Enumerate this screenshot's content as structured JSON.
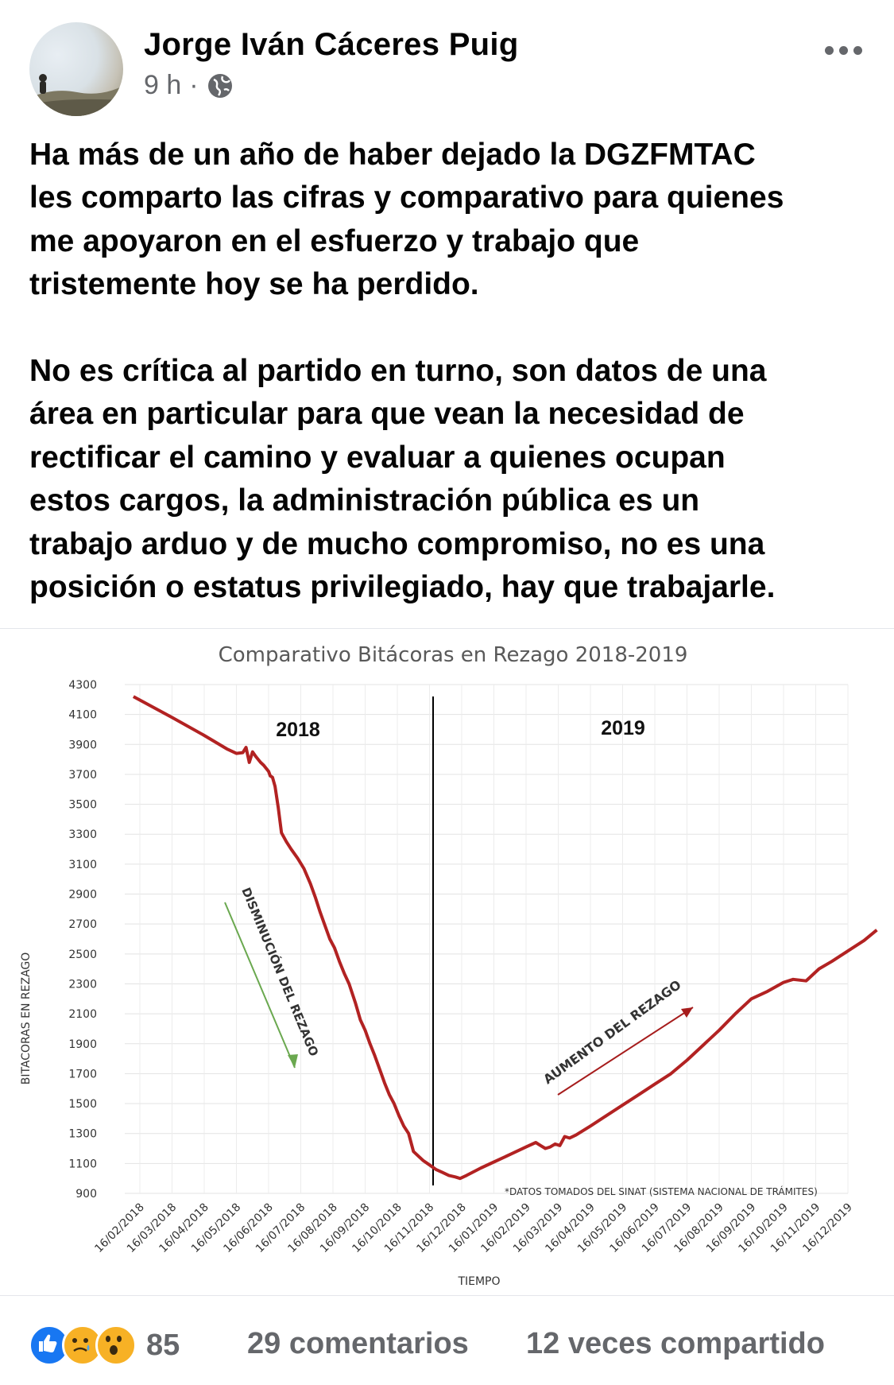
{
  "post": {
    "author": "Jorge Iván Cáceres Puig",
    "time": "9 h",
    "separator": "·",
    "privacy_icon": "globe-icon",
    "more_icon": "more-icon",
    "text": "Ha más de un año de haber dejado la DGZFMTAC\nles comparto las cifras y comparativo para quienes\nme apoyaron en el esfuerzo y trabajo que\ntristemente hoy se ha perdido.\n\nNo es crítica al partido en turno, son datos de una\nárea en particular para que vean la necesidad de\nrectificar el camino y evaluar a quienes ocupan\nestos cargos, la administración pública es un\ntrabajo arduo y de mucho compromiso, no es una\nposición o estatus privilegiado, hay que trabajarle."
  },
  "footer": {
    "reaction_icons": [
      "like-icon",
      "sad-icon",
      "wow-icon"
    ],
    "reaction_count": "85",
    "comments": "29 comentarios",
    "shares": "12 veces compartido"
  },
  "colors": {
    "line": "#b22222",
    "down_arrow": "#6aa84f",
    "up_arrow": "#a61c1c",
    "meta_gray": "#65676b",
    "like_blue": "#1877f2"
  },
  "chart_data": {
    "type": "line",
    "title": "Comparativo Bitácoras en Rezago 2018-2019",
    "xlabel": "TIEMPO",
    "ylabel": "BITACORAS EN REZAGO",
    "ylim": [
      900,
      4300
    ],
    "yticks": [
      4300,
      4100,
      3900,
      3700,
      3500,
      3300,
      3100,
      2900,
      2700,
      2500,
      2300,
      2100,
      1900,
      1700,
      1500,
      1300,
      1100,
      900
    ],
    "xticks": [
      "16/02/2018",
      "16/03/2018",
      "16/04/2018",
      "16/05/2018",
      "16/06/2018",
      "16/07/2018",
      "16/08/2018",
      "16/09/2018",
      "16/10/2018",
      "16/11/2018",
      "16/12/2018",
      "16/01/2019",
      "16/02/2019",
      "16/03/2019",
      "16/04/2019",
      "16/05/2019",
      "16/06/2019",
      "16/07/2019",
      "16/08/2019",
      "16/09/2019",
      "16/10/2019",
      "16/11/2019",
      "16/12/2019"
    ],
    "grid": true,
    "year_labels": [
      "2018",
      "2019"
    ],
    "annotations": {
      "decrease": "DISMINUCIÓN DEL REZAGO",
      "increase": "AUMENTO DEL REZAGO",
      "source": "*DATOS TOMADOS DEL SINAT (SISTEMA NACIONAL DE TRÁMITES)"
    },
    "series": [
      {
        "points": [
          [
            -0.2,
            4220
          ],
          [
            1.0,
            4080
          ],
          [
            2.0,
            3960
          ],
          [
            2.7,
            3870
          ],
          [
            3.0,
            3840
          ],
          [
            3.2,
            3845
          ],
          [
            3.3,
            3880
          ],
          [
            3.4,
            3780
          ],
          [
            3.5,
            3850
          ],
          [
            3.6,
            3820
          ],
          [
            3.75,
            3780
          ],
          [
            3.85,
            3760
          ],
          [
            4.0,
            3720
          ],
          [
            4.05,
            3690
          ],
          [
            4.12,
            3680
          ],
          [
            4.2,
            3620
          ],
          [
            4.3,
            3480
          ],
          [
            4.4,
            3310
          ],
          [
            4.55,
            3250
          ],
          [
            4.7,
            3200
          ],
          [
            4.9,
            3140
          ],
          [
            5.1,
            3070
          ],
          [
            5.3,
            2970
          ],
          [
            5.45,
            2880
          ],
          [
            5.6,
            2780
          ],
          [
            5.75,
            2690
          ],
          [
            5.9,
            2600
          ],
          [
            6.05,
            2540
          ],
          [
            6.2,
            2450
          ],
          [
            6.35,
            2370
          ],
          [
            6.5,
            2300
          ],
          [
            6.7,
            2170
          ],
          [
            6.85,
            2060
          ],
          [
            7.0,
            1990
          ],
          [
            7.15,
            1900
          ],
          [
            7.3,
            1820
          ],
          [
            7.5,
            1700
          ],
          [
            7.6,
            1640
          ],
          [
            7.75,
            1560
          ],
          [
            7.9,
            1500
          ],
          [
            8.05,
            1420
          ],
          [
            8.2,
            1350
          ],
          [
            8.35,
            1300
          ],
          [
            8.5,
            1180
          ],
          [
            8.65,
            1150
          ],
          [
            8.8,
            1120
          ],
          [
            9.0,
            1090
          ],
          [
            9.2,
            1060
          ],
          [
            9.4,
            1040
          ],
          [
            9.6,
            1020
          ],
          [
            9.8,
            1010
          ],
          [
            9.95,
            1000
          ],
          [
            10.15,
            1020
          ],
          [
            10.6,
            1070
          ],
          [
            11.0,
            1110
          ],
          [
            11.5,
            1160
          ],
          [
            12.0,
            1210
          ],
          [
            12.3,
            1240
          ],
          [
            12.45,
            1220
          ],
          [
            12.6,
            1200
          ],
          [
            12.75,
            1210
          ],
          [
            12.9,
            1230
          ],
          [
            13.05,
            1220
          ],
          [
            13.2,
            1280
          ],
          [
            13.35,
            1270
          ],
          [
            13.55,
            1290
          ],
          [
            14.0,
            1350
          ],
          [
            14.5,
            1420
          ],
          [
            15.0,
            1490
          ],
          [
            15.5,
            1560
          ],
          [
            16.0,
            1630
          ],
          [
            16.5,
            1700
          ],
          [
            17.0,
            1790
          ],
          [
            17.5,
            1890
          ],
          [
            18.0,
            1990
          ],
          [
            18.5,
            2100
          ],
          [
            19.0,
            2200
          ],
          [
            19.5,
            2250
          ],
          [
            20.0,
            2310
          ],
          [
            20.3,
            2330
          ],
          [
            20.7,
            2320
          ],
          [
            21.1,
            2400
          ],
          [
            21.5,
            2450
          ],
          [
            22.0,
            2520
          ],
          [
            22.5,
            2590
          ],
          [
            22.9,
            2660
          ]
        ]
      }
    ]
  }
}
